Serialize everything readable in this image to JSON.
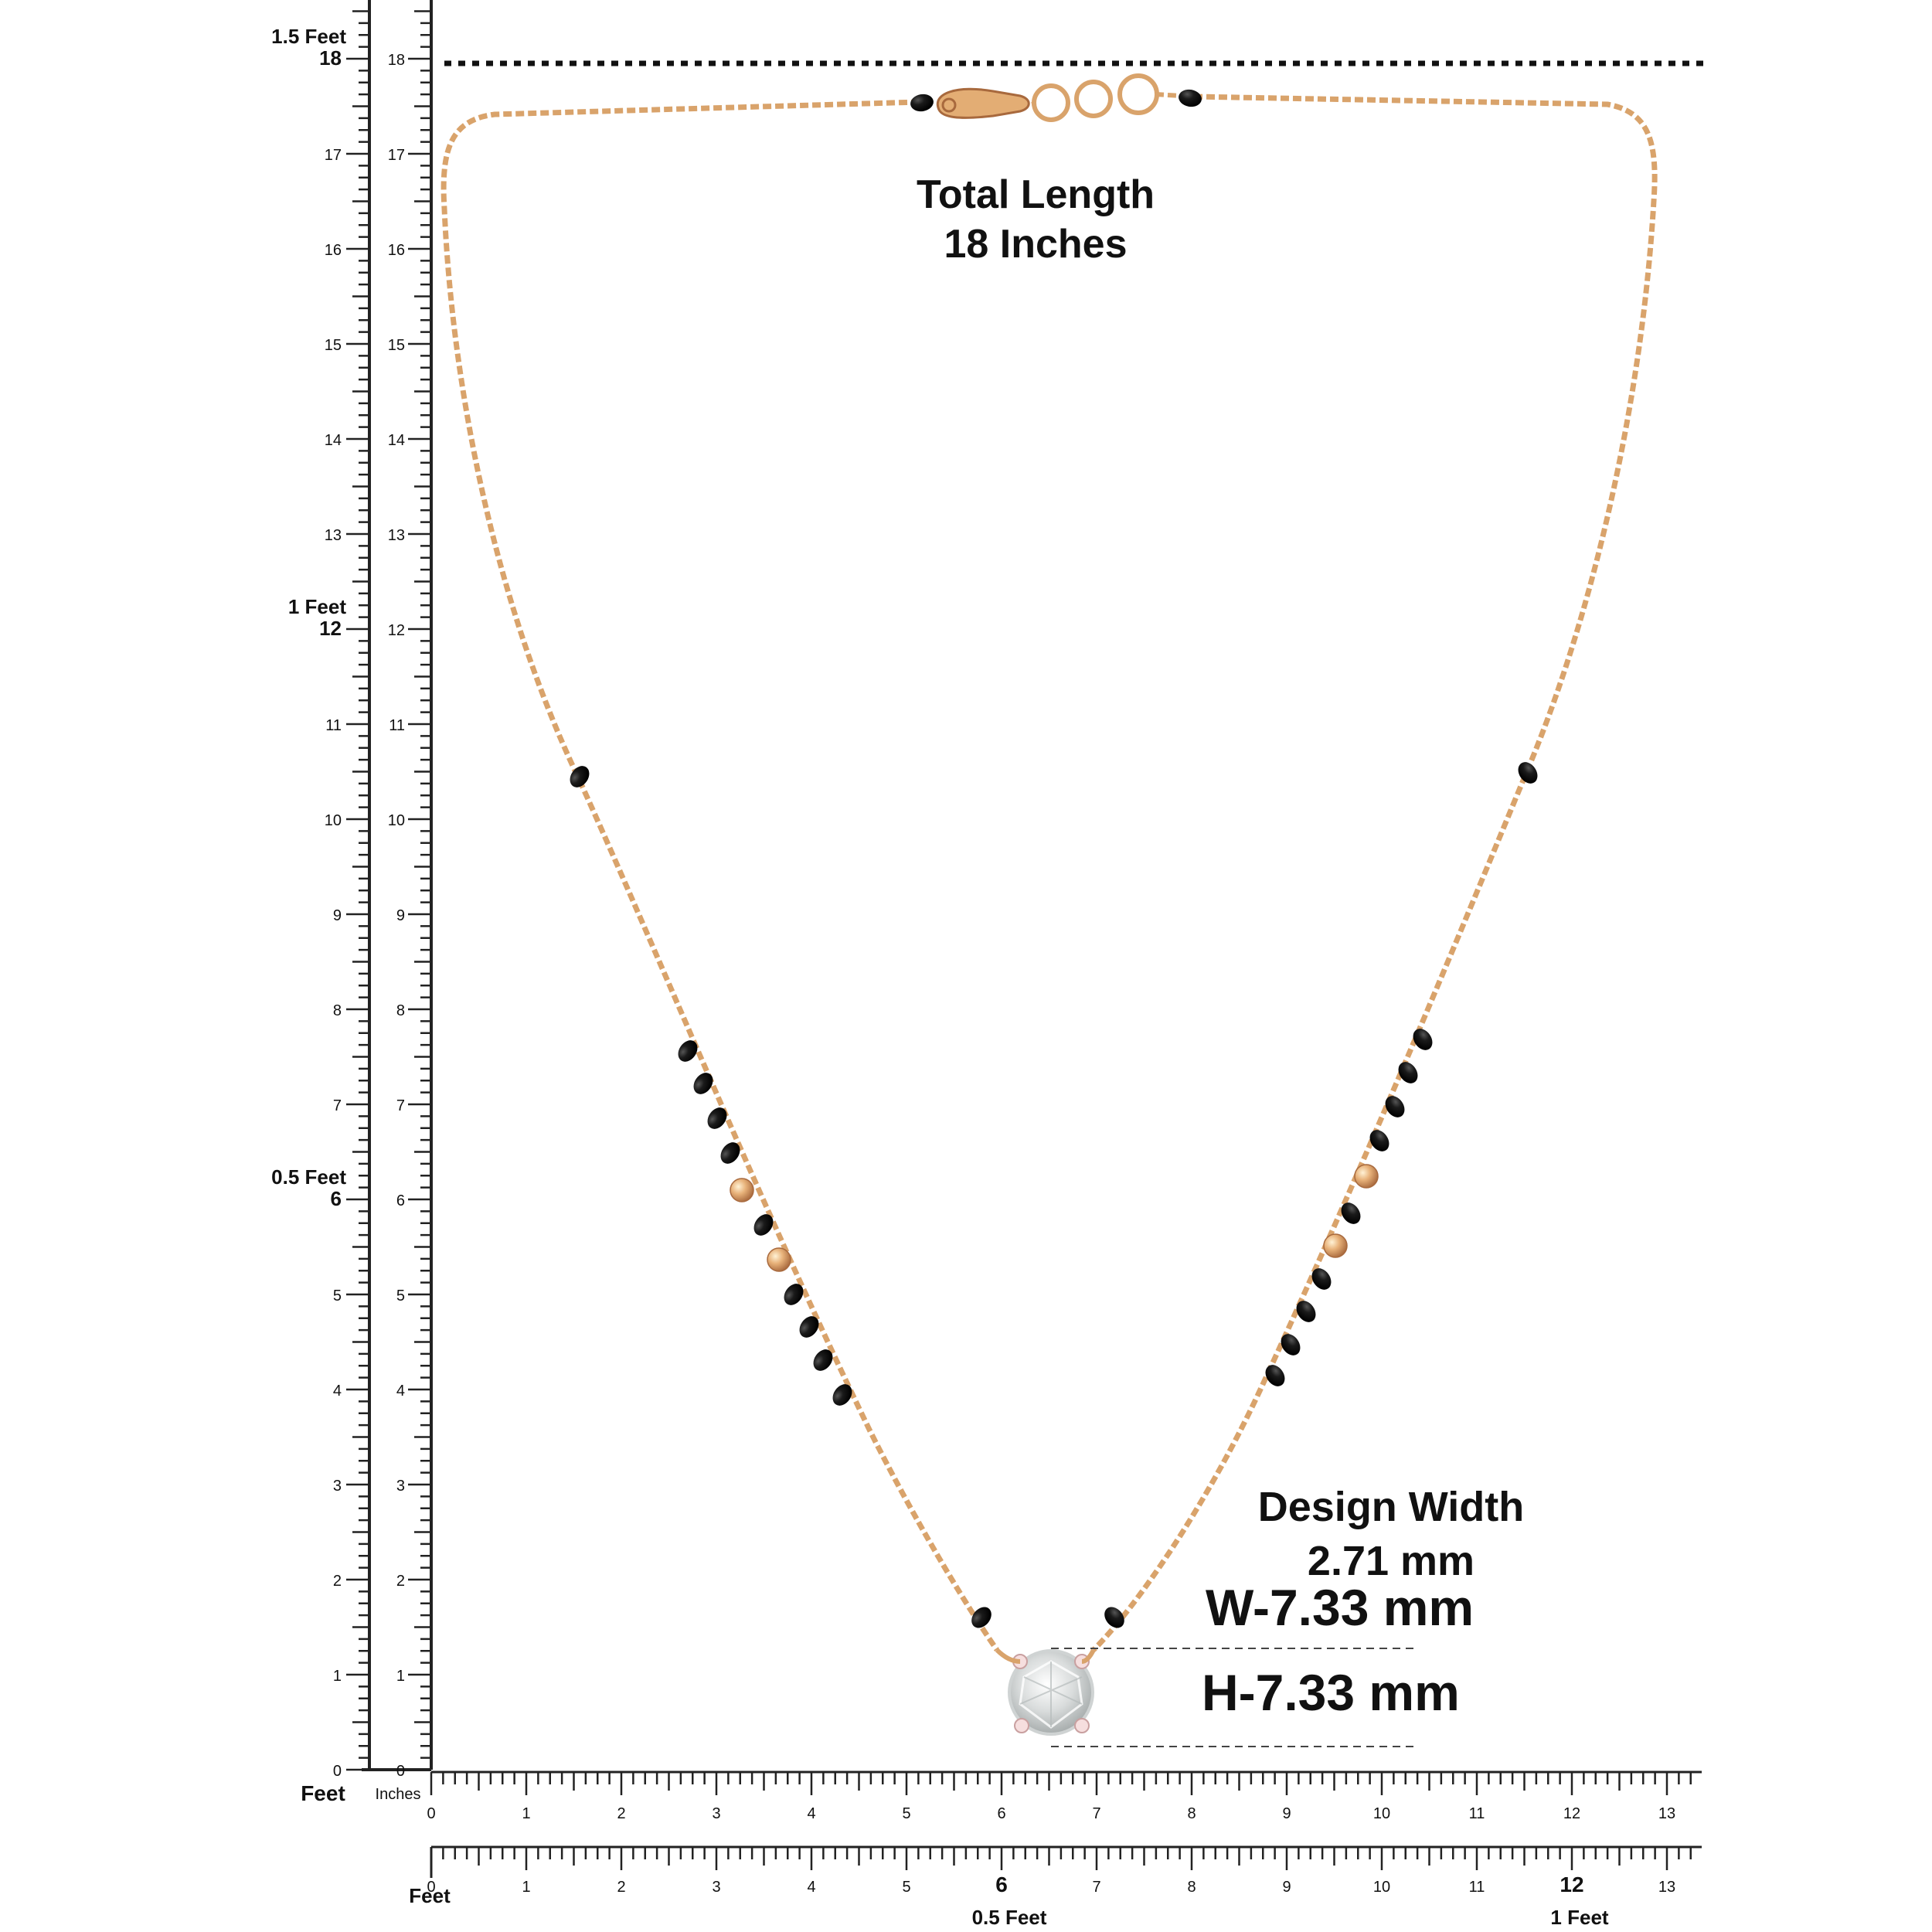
{
  "vertical_ruler": {
    "unit_label": "Feet",
    "inch_unit_label": "Inches",
    "inch_values": [
      "0",
      "1",
      "2",
      "3",
      "4",
      "5",
      "6",
      "7",
      "8",
      "9",
      "10",
      "11",
      "12",
      "13",
      "14",
      "15",
      "16",
      "17",
      "18"
    ],
    "feet_marks": [
      {
        "inch": 6,
        "label": "0.5 Feet"
      },
      {
        "inch": 12,
        "label": "1 Feet"
      },
      {
        "inch": 18,
        "label": "1.5 Feet"
      }
    ]
  },
  "horizontal_ruler_inches": {
    "inch_values": [
      "0",
      "1",
      "2",
      "3",
      "4",
      "5",
      "6",
      "7",
      "8",
      "9",
      "10",
      "11",
      "12",
      "13"
    ]
  },
  "horizontal_ruler_feet": {
    "unit_label": "Feet",
    "inch_values": [
      "0",
      "1",
      "2",
      "3",
      "4",
      "5",
      "6",
      "7",
      "8",
      "9",
      "10",
      "11",
      "12",
      "13"
    ],
    "feet_marks": [
      {
        "inch": 6,
        "label": "0.5 Feet"
      },
      {
        "inch": 12,
        "label": "1 Feet"
      }
    ]
  },
  "annotations": {
    "total_length_line1": "Total Length",
    "total_length_line2": "18 Inches",
    "design_width_line1": "Design Width",
    "design_width_line2": "2.71 mm",
    "width_dimension": "W-7.33 mm",
    "height_dimension": "H-7.33 mm"
  },
  "colors": {
    "chain": "#d9a36b",
    "chain_dark": "#b8794a",
    "black_bead": "#151515",
    "gold_bead": "#e3ad74",
    "ruler": "#222222",
    "text": "#111111"
  }
}
